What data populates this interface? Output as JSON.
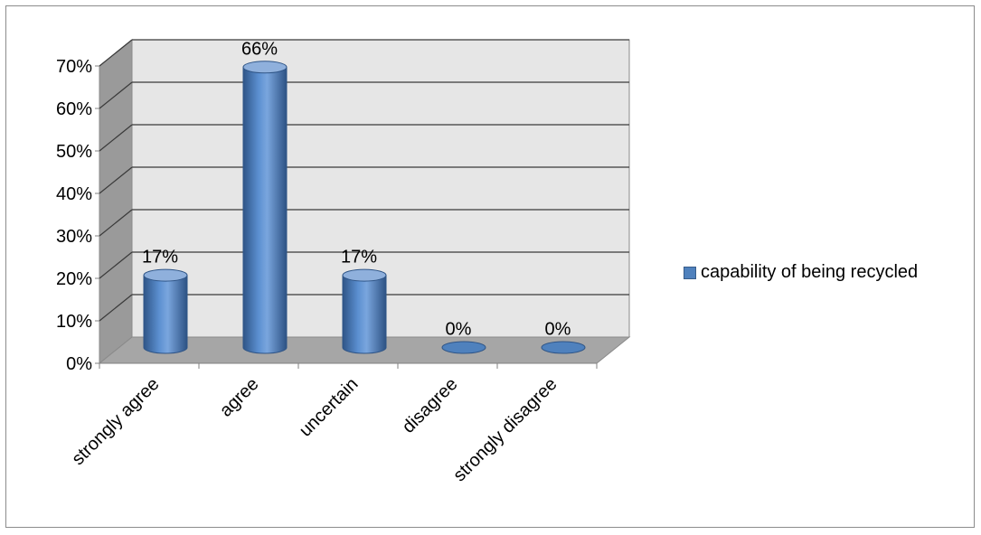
{
  "chart_data": {
    "type": "bar",
    "style": "3d-cylinder",
    "categories": [
      "strongly agree",
      "agree",
      "uncertain",
      "disagree",
      "strongly disagree"
    ],
    "series": [
      {
        "name": "capability of being recycled",
        "values": [
          17,
          66,
          17,
          0,
          0
        ],
        "color": "#4f81bd"
      }
    ],
    "data_labels": [
      "17%",
      "66%",
      "17%",
      "0%",
      "0%"
    ],
    "y_ticks": [
      "0%",
      "10%",
      "20%",
      "30%",
      "40%",
      "50%",
      "60%",
      "70%"
    ],
    "ylim": [
      0,
      70
    ],
    "grid": true,
    "legend_position": "right",
    "title": "",
    "xlabel": "",
    "ylabel": ""
  },
  "colors": {
    "bar": "#4f81bd",
    "bar_dark": "#2f5587",
    "bar_light": "#8fb0dc",
    "back_wall": "#e6e6e6",
    "side_wall": "#9a9a9a",
    "floor": "#a6a6a6",
    "gridline": "#3a3a3a"
  }
}
